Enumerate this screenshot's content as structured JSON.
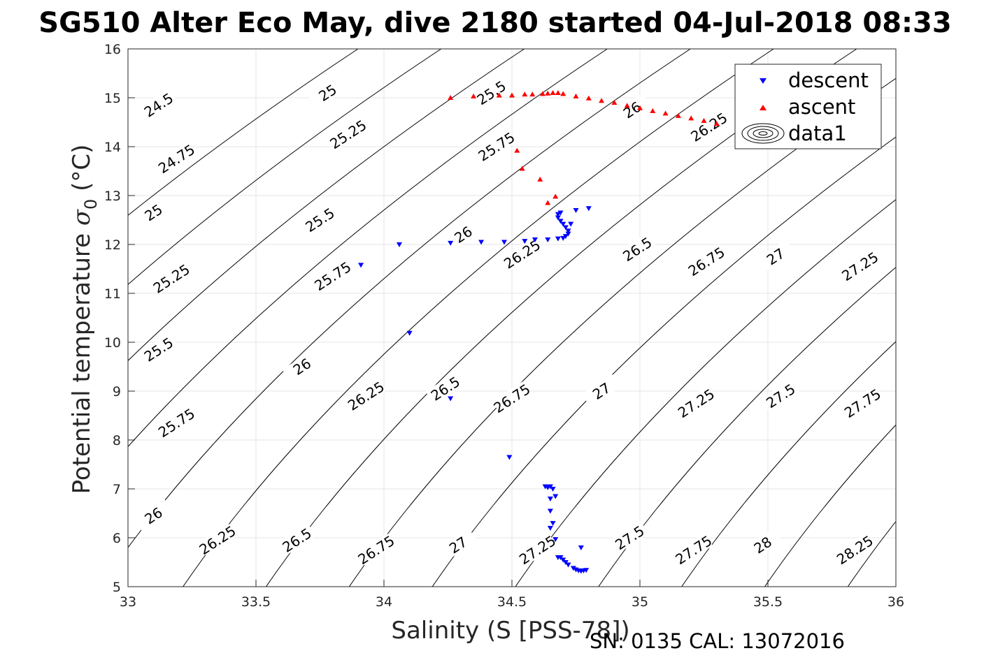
{
  "chart_data": {
    "type": "scatter",
    "title": "SG510 Alter Eco May, dive 2180 started 04-Jul-2018 08:33",
    "xlabel": "Salinity (S [PSS-78])",
    "ylabel": "Potential temperature σ₀ (°C)",
    "ylabel_parts": {
      "main": "Potential temperature ",
      "sigma": "σ",
      "sub": "0",
      "unit": " (°C)"
    },
    "footer": "SN: 0135  CAL: 13072016",
    "xlim": [
      33,
      36
    ],
    "ylim": [
      5,
      16
    ],
    "xticks": [
      "33",
      "33.5",
      "34",
      "34.5",
      "35",
      "35.5",
      "36"
    ],
    "yticks": [
      "5",
      "6",
      "7",
      "8",
      "9",
      "10",
      "11",
      "12",
      "13",
      "14",
      "15",
      "16"
    ],
    "grid": true,
    "legend_position": "top-right",
    "density_contours": {
      "name": "data1",
      "levels": [
        24.5,
        24.75,
        25,
        25.25,
        25.5,
        25.75,
        26,
        26.25,
        26.5,
        26.75,
        27,
        27.25,
        27.5,
        27.75,
        28,
        28.25
      ]
    },
    "contour_labels": [
      {
        "text": "24.5",
        "s": 33.12,
        "t": 14.85
      },
      {
        "text": "24.75",
        "s": 33.19,
        "t": 13.75
      },
      {
        "text": "25",
        "s": 33.1,
        "t": 12.65
      },
      {
        "text": "25.25",
        "s": 33.17,
        "t": 11.3
      },
      {
        "text": "25.5",
        "s": 33.12,
        "t": 9.85
      },
      {
        "text": "25.75",
        "s": 33.19,
        "t": 8.35
      },
      {
        "text": "26",
        "s": 33.1,
        "t": 6.45
      },
      {
        "text": "26.25",
        "s": 33.35,
        "t": 5.95
      },
      {
        "text": "25",
        "s": 33.78,
        "t": 15.1
      },
      {
        "text": "25.25",
        "s": 33.86,
        "t": 14.25
      },
      {
        "text": "25.5",
        "s": 33.75,
        "t": 12.5
      },
      {
        "text": "25.75",
        "s": 33.8,
        "t": 11.35
      },
      {
        "text": "26",
        "s": 33.68,
        "t": 9.5
      },
      {
        "text": "26.25",
        "s": 33.93,
        "t": 8.9
      },
      {
        "text": "26.5",
        "s": 33.66,
        "t": 5.95
      },
      {
        "text": "26.75",
        "s": 33.97,
        "t": 5.75
      },
      {
        "text": "25.5",
        "s": 34.42,
        "t": 15.1
      },
      {
        "text": "25.75",
        "s": 34.44,
        "t": 14.0
      },
      {
        "text": "26",
        "s": 34.31,
        "t": 12.2
      },
      {
        "text": "26.25",
        "s": 34.54,
        "t": 11.8
      },
      {
        "text": "26.5",
        "s": 34.24,
        "t": 9.05
      },
      {
        "text": "26.75",
        "s": 34.5,
        "t": 8.85
      },
      {
        "text": "27",
        "s": 34.29,
        "t": 5.85
      },
      {
        "text": "27.25",
        "s": 34.6,
        "t": 5.75
      },
      {
        "text": "26.5",
        "s": 34.99,
        "t": 11.9
      },
      {
        "text": "27",
        "s": 34.85,
        "t": 9.0
      },
      {
        "text": "26",
        "s": 34.97,
        "t": 14.75
      },
      {
        "text": "26.25",
        "s": 35.27,
        "t": 14.4
      },
      {
        "text": "26.75",
        "s": 35.26,
        "t": 11.65
      },
      {
        "text": "27.25",
        "s": 35.22,
        "t": 8.75
      },
      {
        "text": "27.5",
        "s": 34.96,
        "t": 6.0
      },
      {
        "text": "27.75",
        "s": 35.21,
        "t": 5.75
      },
      {
        "text": "27",
        "s": 35.53,
        "t": 11.75
      },
      {
        "text": "27.25",
        "s": 35.86,
        "t": 11.55
      },
      {
        "text": "27.5",
        "s": 35.55,
        "t": 8.9
      },
      {
        "text": "27.75",
        "s": 35.87,
        "t": 8.75
      },
      {
        "text": "28",
        "s": 35.48,
        "t": 5.85
      },
      {
        "text": "28.25",
        "s": 35.84,
        "t": 5.75
      }
    ],
    "series": [
      {
        "name": "descent",
        "color": "#0000ff",
        "marker": "triangle-down",
        "points": [
          [
            33.91,
            11.58
          ],
          [
            34.06,
            12.0
          ],
          [
            34.26,
            12.03
          ],
          [
            34.38,
            12.05
          ],
          [
            34.47,
            12.05
          ],
          [
            34.55,
            12.07
          ],
          [
            34.59,
            12.1
          ],
          [
            34.64,
            12.1
          ],
          [
            34.68,
            12.12
          ],
          [
            34.7,
            12.13
          ],
          [
            34.71,
            12.17
          ],
          [
            34.72,
            12.22
          ],
          [
            34.72,
            12.28
          ],
          [
            34.71,
            12.35
          ],
          [
            34.7,
            12.42
          ],
          [
            34.69,
            12.48
          ],
          [
            34.68,
            12.55
          ],
          [
            34.68,
            12.62
          ],
          [
            34.69,
            12.65
          ],
          [
            34.73,
            12.42
          ],
          [
            34.75,
            12.7
          ],
          [
            34.8,
            12.74
          ],
          [
            34.1,
            10.19
          ],
          [
            34.26,
            8.85
          ],
          [
            34.49,
            7.65
          ],
          [
            34.63,
            7.05
          ],
          [
            34.64,
            7.03
          ],
          [
            34.65,
            7.05
          ],
          [
            34.66,
            7.0
          ],
          [
            34.65,
            6.8
          ],
          [
            34.67,
            6.85
          ],
          [
            34.65,
            6.55
          ],
          [
            34.66,
            6.3
          ],
          [
            34.65,
            6.2
          ],
          [
            34.67,
            5.97
          ],
          [
            34.68,
            5.6
          ],
          [
            34.7,
            5.55
          ],
          [
            34.71,
            5.5
          ],
          [
            34.72,
            5.45
          ],
          [
            34.74,
            5.38
          ],
          [
            34.75,
            5.35
          ],
          [
            34.76,
            5.33
          ],
          [
            34.77,
            5.32
          ],
          [
            34.78,
            5.33
          ],
          [
            34.79,
            5.34
          ],
          [
            34.77,
            5.8
          ],
          [
            34.69,
            5.6
          ]
        ]
      },
      {
        "name": "ascent",
        "color": "#ff0000",
        "marker": "triangle-up",
        "points": [
          [
            34.26,
            15.0
          ],
          [
            34.35,
            15.03
          ],
          [
            34.45,
            15.05
          ],
          [
            34.5,
            15.05
          ],
          [
            34.55,
            15.07
          ],
          [
            34.58,
            15.07
          ],
          [
            34.62,
            15.08
          ],
          [
            34.64,
            15.09
          ],
          [
            34.66,
            15.1
          ],
          [
            34.68,
            15.1
          ],
          [
            34.7,
            15.08
          ],
          [
            34.75,
            15.03
          ],
          [
            34.8,
            14.99
          ],
          [
            34.85,
            14.94
          ],
          [
            34.9,
            14.9
          ],
          [
            34.95,
            14.84
          ],
          [
            35.0,
            14.79
          ],
          [
            35.05,
            14.73
          ],
          [
            35.1,
            14.68
          ],
          [
            35.15,
            14.63
          ],
          [
            35.2,
            14.58
          ],
          [
            35.25,
            14.53
          ],
          [
            35.3,
            14.47
          ],
          [
            34.52,
            13.92
          ],
          [
            34.54,
            13.55
          ],
          [
            34.61,
            13.33
          ],
          [
            34.64,
            12.85
          ],
          [
            34.67,
            12.98
          ]
        ]
      }
    ]
  }
}
